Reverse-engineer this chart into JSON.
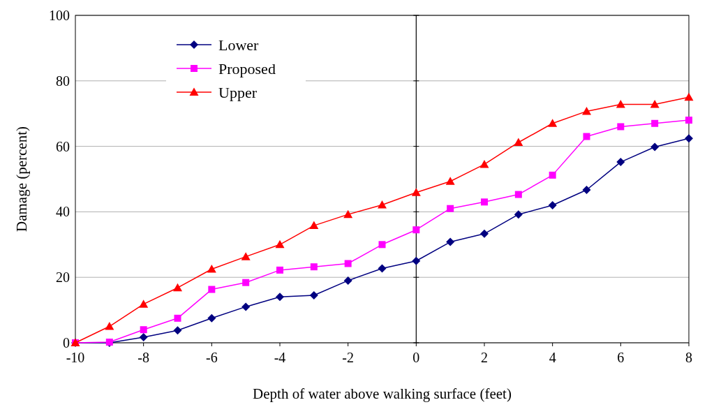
{
  "chart_data": {
    "type": "line",
    "xlabel": "Depth of water above walking surface (feet)",
    "ylabel": "Damage (percent)",
    "x": [
      -10,
      -9,
      -8,
      -7,
      -6,
      -5,
      -4,
      -3,
      -2,
      -1,
      0,
      1,
      2,
      3,
      4,
      5,
      6,
      7,
      8
    ],
    "series": [
      {
        "name": "Lower",
        "color": "#000080",
        "marker": "diamond",
        "values": [
          0,
          0,
          1.7,
          3.8,
          7.5,
          11,
          14,
          14.5,
          19,
          22.7,
          25,
          30.8,
          33.3,
          39.2,
          42,
          46.7,
          55.2,
          59.8,
          62.4
        ]
      },
      {
        "name": "Proposed",
        "color": "#ff00ff",
        "marker": "square",
        "values": [
          0,
          0.2,
          4,
          7.5,
          16.3,
          18.4,
          22.2,
          23.2,
          24.2,
          30,
          34.5,
          41,
          43,
          45.3,
          51.2,
          63,
          66,
          67,
          68
        ]
      },
      {
        "name": "Upper",
        "color": "#ff0000",
        "marker": "triangle",
        "values": [
          0,
          5,
          11.8,
          16.8,
          22.5,
          26.3,
          30,
          35.8,
          39.2,
          42.1,
          45.9,
          49.3,
          54.5,
          61.2,
          67,
          70.7,
          72.8,
          72.8,
          75
        ]
      }
    ],
    "xlim": [
      -10,
      8
    ],
    "xticks": [
      -10,
      -8,
      -6,
      -4,
      -2,
      0,
      2,
      4,
      6,
      8
    ],
    "ylim": [
      0,
      100
    ],
    "yticks": [
      0,
      20,
      40,
      60,
      80,
      100
    ],
    "grid": "y",
    "legend": "top left",
    "line_style": "solid"
  }
}
